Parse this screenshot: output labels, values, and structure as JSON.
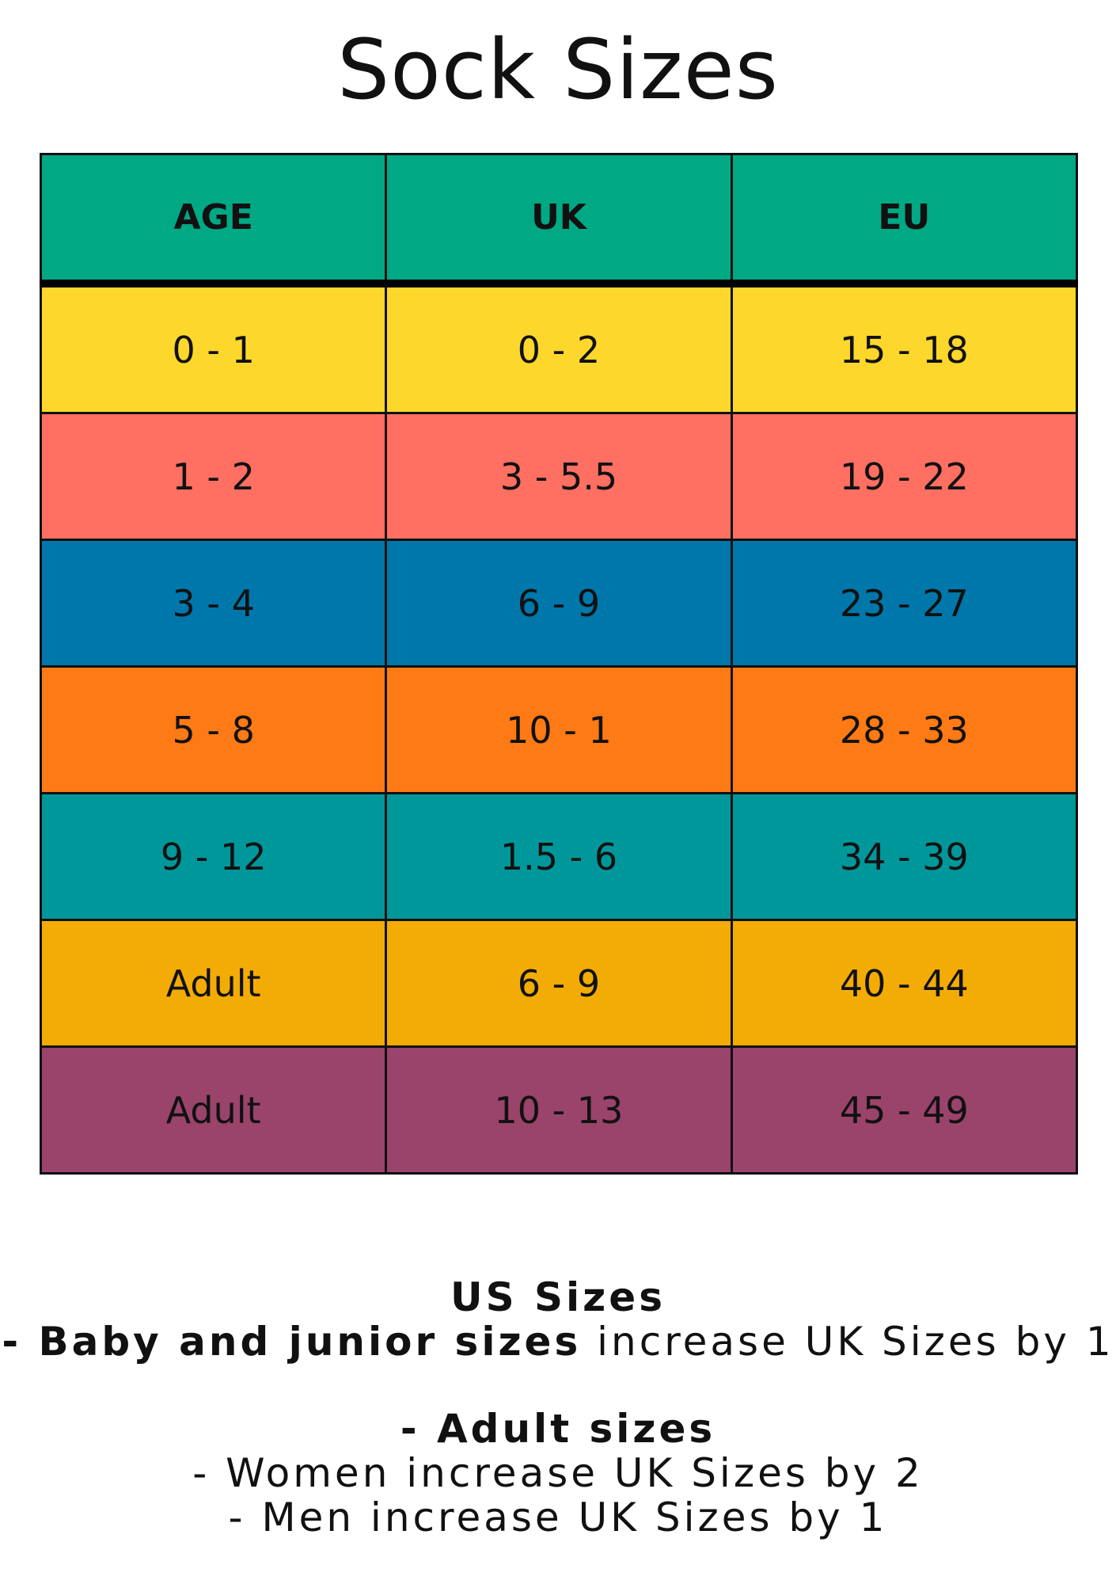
{
  "title": "Sock Sizes",
  "table": {
    "headers": [
      "AGE",
      "UK",
      "EU"
    ],
    "header_color": "#00A884",
    "rows": [
      {
        "age": "0 - 1",
        "uk": "0 - 2",
        "eu": "15 - 18",
        "color": "#FDD72B"
      },
      {
        "age": "1 - 2",
        "uk": "3 - 5.5",
        "eu": "19 - 22",
        "color": "#FF6F62"
      },
      {
        "age": "3 - 4",
        "uk": "6 - 9",
        "eu": "23 - 27",
        "color": "#0077AA"
      },
      {
        "age": "5 - 8",
        "uk": "10 - 1",
        "eu": "28 - 33",
        "color": "#FE7A15"
      },
      {
        "age": "9 - 12",
        "uk": "1.5 - 6",
        "eu": "34 - 39",
        "color": "#00979B"
      },
      {
        "age": "Adult",
        "uk": "6 - 9",
        "eu": "40 - 44",
        "color": "#F2AC05"
      },
      {
        "age": "Adult",
        "uk": "10 - 13",
        "eu": "45 - 49",
        "color": "#9A436B"
      }
    ]
  },
  "notes": {
    "heading": "US Sizes",
    "baby_prefix": "- ",
    "baby_bold": "Baby and junior sizes",
    "baby_rest": " increase UK Sizes by 1",
    "adult_heading": "- Adult sizes",
    "women": "- Women increase UK Sizes by 2",
    "men": "- Men increase UK Sizes by 1"
  }
}
